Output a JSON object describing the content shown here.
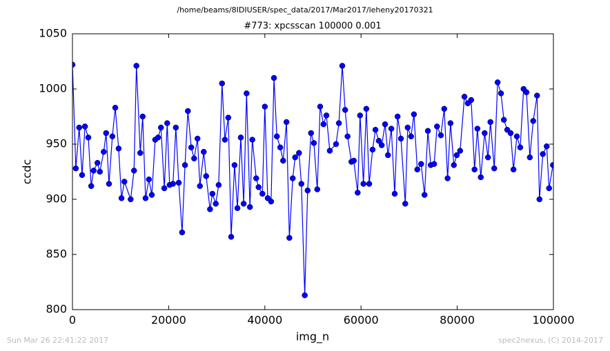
{
  "chart_data": {
    "type": "line",
    "suptitle": "/home/beams/8IDIUSER/spec_data/2017/Mar2017/leheny20170321",
    "title": "#773: xpcsscan 100000 0.001",
    "xlabel": "img_n",
    "ylabel": "ccdc",
    "xlim": [
      0,
      100000
    ],
    "xticks": [
      0,
      20000,
      40000,
      60000,
      80000,
      100000
    ],
    "ylim": [
      800,
      1050
    ],
    "yticks": [
      800,
      850,
      900,
      950,
      1000,
      1050
    ],
    "grid": false,
    "x": [
      0,
      700,
      1400,
      2000,
      2600,
      3300,
      3900,
      4400,
      5200,
      5700,
      6500,
      7000,
      7600,
      8300,
      8900,
      9600,
      10200,
      10800,
      12100,
      12800,
      13300,
      14100,
      14600,
      15200,
      15900,
      16500,
      17200,
      17800,
      18400,
      19100,
      19700,
      20200,
      20900,
      21500,
      22100,
      22800,
      23400,
      24000,
      24700,
      25300,
      26000,
      26500,
      27300,
      27800,
      28600,
      29100,
      29800,
      30400,
      31100,
      31700,
      32400,
      33000,
      33700,
      34300,
      35000,
      35600,
      36200,
      36900,
      37400,
      38200,
      38700,
      39500,
      40000,
      40600,
      41300,
      41900,
      42500,
      43200,
      43800,
      44500,
      45100,
      45800,
      46300,
      47100,
      47600,
      48300,
      48900,
      49600,
      50200,
      50900,
      51500,
      52200,
      52800,
      53500,
      54800,
      55400,
      56100,
      56700,
      57200,
      58000,
      58500,
      59300,
      59800,
      60500,
      61100,
      61700,
      62400,
      63000,
      63700,
      64300,
      65000,
      65600,
      66300,
      67000,
      67600,
      68300,
      69200,
      69700,
      70400,
      71000,
      71700,
      72500,
      73200,
      73900,
      74500,
      75200,
      75800,
      76600,
      77300,
      78000,
      78600,
      79300,
      79900,
      80600,
      81500,
      82200,
      82900,
      83600,
      84200,
      84900,
      85700,
      86400,
      86900,
      87700,
      88400,
      89100,
      89700,
      90400,
      91100,
      91700,
      92400,
      93100,
      93800,
      94400,
      95100,
      95800,
      96600,
      97100,
      97800,
      98600,
      99100,
      99900
    ],
    "series": [
      {
        "name": "ccdc",
        "color": "#0000ff",
        "values": [
          1022,
          928,
          965,
          922,
          966,
          956,
          912,
          926,
          933,
          925,
          943,
          960,
          914,
          957,
          983,
          946,
          901,
          916,
          900,
          926,
          1021,
          942,
          975,
          901,
          918,
          904,
          954,
          956,
          965,
          910,
          969,
          913,
          914,
          965,
          915,
          870,
          931,
          980,
          947,
          937,
          955,
          912,
          943,
          921,
          891,
          905,
          896,
          913,
          1005,
          954,
          974,
          866,
          931,
          892,
          956,
          896,
          996,
          893,
          954,
          919,
          911,
          905,
          984,
          901,
          898,
          1010,
          957,
          947,
          935,
          970,
          865,
          919,
          938,
          942,
          914,
          813,
          908,
          960,
          951,
          909,
          984,
          968,
          976,
          944,
          950,
          969,
          1021,
          981,
          957,
          934,
          935,
          906,
          976,
          914,
          982,
          914,
          945,
          963,
          953,
          949,
          968,
          940,
          964,
          905,
          975,
          955,
          896,
          965,
          957,
          977,
          927,
          932,
          904,
          962,
          931,
          932,
          966,
          958,
          982,
          919,
          969,
          931,
          940,
          944,
          993,
          987,
          990,
          927,
          964,
          920,
          960,
          938,
          970,
          928,
          1006,
          996,
          972,
          963,
          960,
          927,
          957,
          947,
          1000,
          997,
          938,
          971,
          994,
          900,
          941,
          948,
          910,
          931
        ]
      }
    ]
  },
  "footer": {
    "left": "Sun Mar 26 22:41:22 2017",
    "right": "spec2nexus, (C) 2014-2017"
  }
}
